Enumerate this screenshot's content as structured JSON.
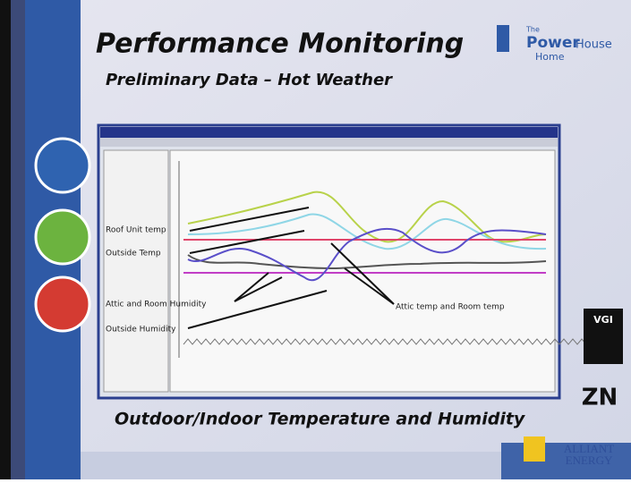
{
  "slide": {
    "title": "Performance Monitoring",
    "subtitle": "Preliminary Data – Hot Weather",
    "caption": "Outdoor/Indoor Temperature and Humidity",
    "logo": {
      "small": "The",
      "brand": "Power",
      "brand2": "House",
      "brand3": "Home"
    },
    "annotations": [
      "Roof Unit temp",
      "Outside Temp",
      "Attic and Room Humidity",
      "Outside Humidity",
      "Attic temp and Room temp"
    ],
    "badges": [
      "VGI",
      "ZN"
    ],
    "sponsor": "ALLIANT ENERGY"
  }
}
